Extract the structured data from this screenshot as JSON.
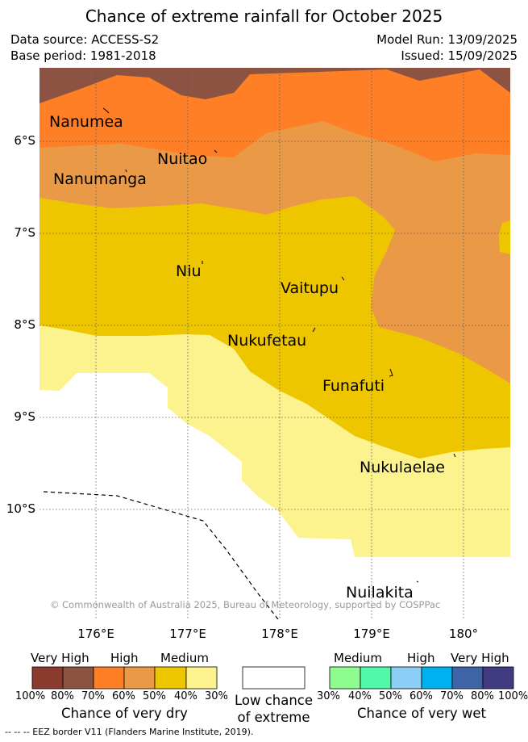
{
  "title": "Chance of extreme rainfall for October 2025",
  "meta": {
    "data_source": "Data source: ACCESS-S2",
    "base_period": "Base period: 1981-2018",
    "model_run": "Model Run: 13/09/2025",
    "issued": "Issued: 15/09/2025"
  },
  "axes": {
    "lat_labels": [
      "6°S",
      "7°S",
      "8°S",
      "9°S",
      "10°S"
    ],
    "lon_labels": [
      "176°E",
      "177°E",
      "178°E",
      "179°E",
      "180°"
    ]
  },
  "places": [
    "Nanumea",
    "Nuitao",
    "Nanumanga",
    "Niu",
    "Vaitupu",
    "Nukufetau",
    "Funafuti",
    "Nukulaelae",
    "Nuilakita"
  ],
  "categories": {
    "very_high_dry": "#8c5343",
    "high_dry": "#fe7f26",
    "medium_dry": "#ea9a47",
    "low_dry": "#edc600",
    "lowest_dry": "#fdf38e",
    "low_chance": "#ffffff"
  },
  "copyright": "© Commonwealth of Australia 2025, Bureau of Meteorology, supported by COSPPac",
  "legend": {
    "dry": {
      "headers": [
        "Very High",
        "High",
        "Medium"
      ],
      "colors": [
        "#8b3a2e",
        "#8c5343",
        "#fe7f26",
        "#ea9a47",
        "#edc600",
        "#fdf38e"
      ],
      "ticks": [
        "100%",
        "80%",
        "70%",
        "60%",
        "50%",
        "40%",
        "30%"
      ],
      "caption": "Chance of very dry"
    },
    "low": {
      "caption_line1": "Low chance",
      "caption_line2": "of extreme"
    },
    "wet": {
      "headers": [
        "Medium",
        "High",
        "Very High"
      ],
      "colors": [
        "#8ffc8f",
        "#51f8a8",
        "#8bcff7",
        "#00b0ef",
        "#3f63a7",
        "#403c7f"
      ],
      "ticks": [
        "30%",
        "40%",
        "50%",
        "60%",
        "70%",
        "80%",
        "100%"
      ],
      "caption": "Chance of very wet"
    }
  },
  "eez_note": "--  --  -- EEZ border V11 (Flanders Marine Institute, 2019)."
}
